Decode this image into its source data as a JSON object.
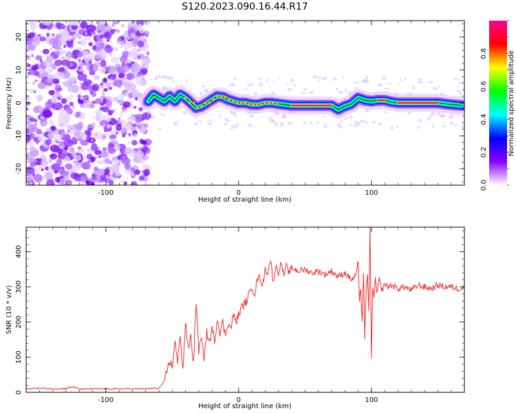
{
  "title": "S120.2023.090.16.44.R17",
  "chart_data": [
    {
      "type": "heatmap",
      "xlabel": "Height of straight line (km)",
      "ylabel": "Frequency (Hz)",
      "xlim": [
        -160,
        170
      ],
      "ylim": [
        -25,
        25
      ],
      "x_ticks": [
        -100,
        0,
        100
      ],
      "y_ticks": [
        -20,
        -10,
        0,
        10,
        20
      ],
      "colorbar": {
        "label": "Normalized spectral amplitude",
        "range": [
          0.0,
          1.0
        ],
        "ticks": [
          "0.0",
          "0.2",
          "0.4",
          "0.6",
          "0.8"
        ],
        "colors": [
          "#ffffff",
          "#8a00ff",
          "#0000ff",
          "#00ffff",
          "#00ff00",
          "#ffff00",
          "#ff0000",
          "#ff0090"
        ]
      },
      "noise_region_x": [
        -160,
        -68
      ],
      "signal_track": [
        [
          -68,
          0.5
        ],
        [
          -64,
          2.5
        ],
        [
          -60,
          1.5
        ],
        [
          -56,
          0.5
        ],
        [
          -52,
          2.0
        ],
        [
          -48,
          0.5
        ],
        [
          -44,
          2.5
        ],
        [
          -40,
          1.5
        ],
        [
          -36,
          0.0
        ],
        [
          -32,
          -1.5
        ],
        [
          -28,
          -1.0
        ],
        [
          -24,
          0.0
        ],
        [
          -20,
          1.0
        ],
        [
          -16,
          2.0
        ],
        [
          -12,
          1.8
        ],
        [
          -8,
          1.0
        ],
        [
          -4,
          0.5
        ],
        [
          0,
          0.0
        ],
        [
          5,
          0.0
        ],
        [
          10,
          -0.5
        ],
        [
          15,
          -0.5
        ],
        [
          20,
          0.0
        ],
        [
          25,
          0.0
        ],
        [
          30,
          -0.3
        ],
        [
          40,
          -0.8
        ],
        [
          50,
          -0.8
        ],
        [
          60,
          -0.8
        ],
        [
          70,
          -0.8
        ],
        [
          75,
          -2.0
        ],
        [
          80,
          -1.0
        ],
        [
          85,
          -0.3
        ],
        [
          90,
          1.5
        ],
        [
          95,
          0.8
        ],
        [
          100,
          0.5
        ],
        [
          105,
          0.8
        ],
        [
          110,
          0.8
        ],
        [
          115,
          0.3
        ],
        [
          120,
          0.0
        ],
        [
          130,
          0.0
        ],
        [
          140,
          0.0
        ],
        [
          150,
          0.0
        ],
        [
          160,
          -0.5
        ],
        [
          168,
          -0.8
        ]
      ]
    },
    {
      "type": "line",
      "xlabel": "Height of straight line (km)",
      "ylabel": "SNR (10 * v/v)",
      "xlim": [
        -160,
        170
      ],
      "ylim": [
        0,
        470
      ],
      "x_ticks": [
        -100,
        0,
        100
      ],
      "y_ticks": [
        0,
        100,
        200,
        300,
        400
      ],
      "series": [
        {
          "color": "#e8312e",
          "x": [
            -160,
            -150,
            -140,
            -130,
            -125,
            -120,
            -110,
            -100,
            -90,
            -80,
            -70,
            -60,
            -56,
            -52,
            -50,
            -48,
            -46,
            -44,
            -42,
            -40,
            -38,
            -36,
            -34,
            -32,
            -30,
            -28,
            -26,
            -24,
            -22,
            -20,
            -18,
            -16,
            -14,
            -12,
            -10,
            -8,
            -6,
            -4,
            -2,
            0,
            2,
            4,
            6,
            8,
            10,
            12,
            14,
            16,
            18,
            20,
            22,
            24,
            26,
            28,
            30,
            32,
            34,
            36,
            38,
            40,
            45,
            50,
            55,
            60,
            65,
            70,
            75,
            80,
            85,
            88,
            90,
            91,
            92,
            93,
            94,
            95,
            96,
            97,
            98,
            99,
            100,
            101,
            102,
            103,
            104,
            106,
            108,
            110,
            112,
            115,
            120,
            125,
            130,
            135,
            140,
            145,
            150,
            155,
            160,
            165,
            170
          ],
          "y": [
            10,
            12,
            10,
            11,
            16,
            9,
            10,
            10,
            10,
            10,
            10,
            12,
            30,
            90,
            70,
            150,
            80,
            170,
            60,
            200,
            120,
            160,
            80,
            260,
            120,
            150,
            100,
            170,
            140,
            180,
            150,
            210,
            170,
            200,
            160,
            200,
            180,
            220,
            200,
            220,
            240,
            250,
            260,
            280,
            300,
            280,
            320,
            330,
            300,
            350,
            340,
            380,
            310,
            360,
            340,
            370,
            330,
            360,
            340,
            355,
            345,
            350,
            340,
            345,
            335,
            345,
            330,
            340,
            320,
            330,
            370,
            250,
            300,
            200,
            340,
            160,
            280,
            330,
            240,
            470,
            100,
            300,
            260,
            330,
            280,
            320,
            290,
            310,
            300,
            305,
            295,
            300,
            290,
            305,
            300,
            295,
            305,
            300,
            300,
            295,
            300
          ]
        }
      ]
    }
  ]
}
